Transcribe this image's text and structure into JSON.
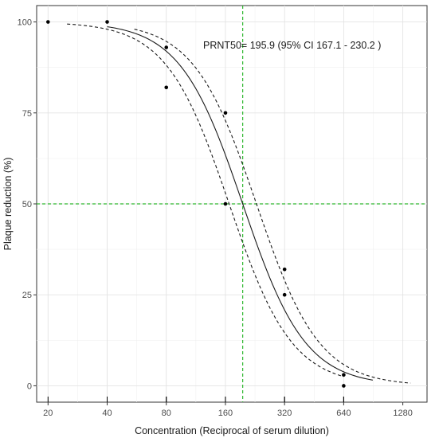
{
  "chart_data": {
    "type": "scatter",
    "xlabel": "Concentration (Reciprocal of serum dilution)",
    "ylabel": "Plaque reduction (%)",
    "x_scale": "log2",
    "xlim": [
      17.5,
      1700
    ],
    "ylim": [
      -4.5,
      104.5
    ],
    "x_ticks": [
      20,
      40,
      80,
      160,
      320,
      640,
      1280
    ],
    "x_tick_labels": [
      "20",
      "40",
      "80",
      "160",
      "320",
      "640",
      "1280"
    ],
    "y_ticks": [
      0,
      25,
      50,
      75,
      100
    ],
    "y_tick_labels": [
      "0",
      "25",
      "50",
      "75",
      "100"
    ],
    "grid": true,
    "points": [
      {
        "x": 20,
        "y": 100
      },
      {
        "x": 40,
        "y": 100
      },
      {
        "x": 80,
        "y": 93
      },
      {
        "x": 80,
        "y": 82
      },
      {
        "x": 160,
        "y": 75
      },
      {
        "x": 160,
        "y": 50
      },
      {
        "x": 320,
        "y": 32
      },
      {
        "x": 320,
        "y": 25
      },
      {
        "x": 640,
        "y": 3
      },
      {
        "x": 640,
        "y": 0
      }
    ],
    "fit": {
      "ec50": 195.9,
      "hill": 2.72,
      "x_range": [
        40,
        900
      ]
    },
    "ci_lower": {
      "ec50": 167.1,
      "hill": 2.72,
      "x_range": [
        25,
        640
      ]
    },
    "ci_upper": {
      "ec50": 230.2,
      "hill": 2.72,
      "x_range": [
        55,
        1400
      ]
    },
    "reference_lines": {
      "x": 195.9,
      "y": 50,
      "color": "#2eb82e"
    },
    "rug_x": [
      20,
      40,
      80,
      80,
      160,
      160,
      320,
      320,
      640,
      640
    ],
    "annotation": "PRNT50= 195.9 (95% CI 167.1 - 230.2 )"
  }
}
